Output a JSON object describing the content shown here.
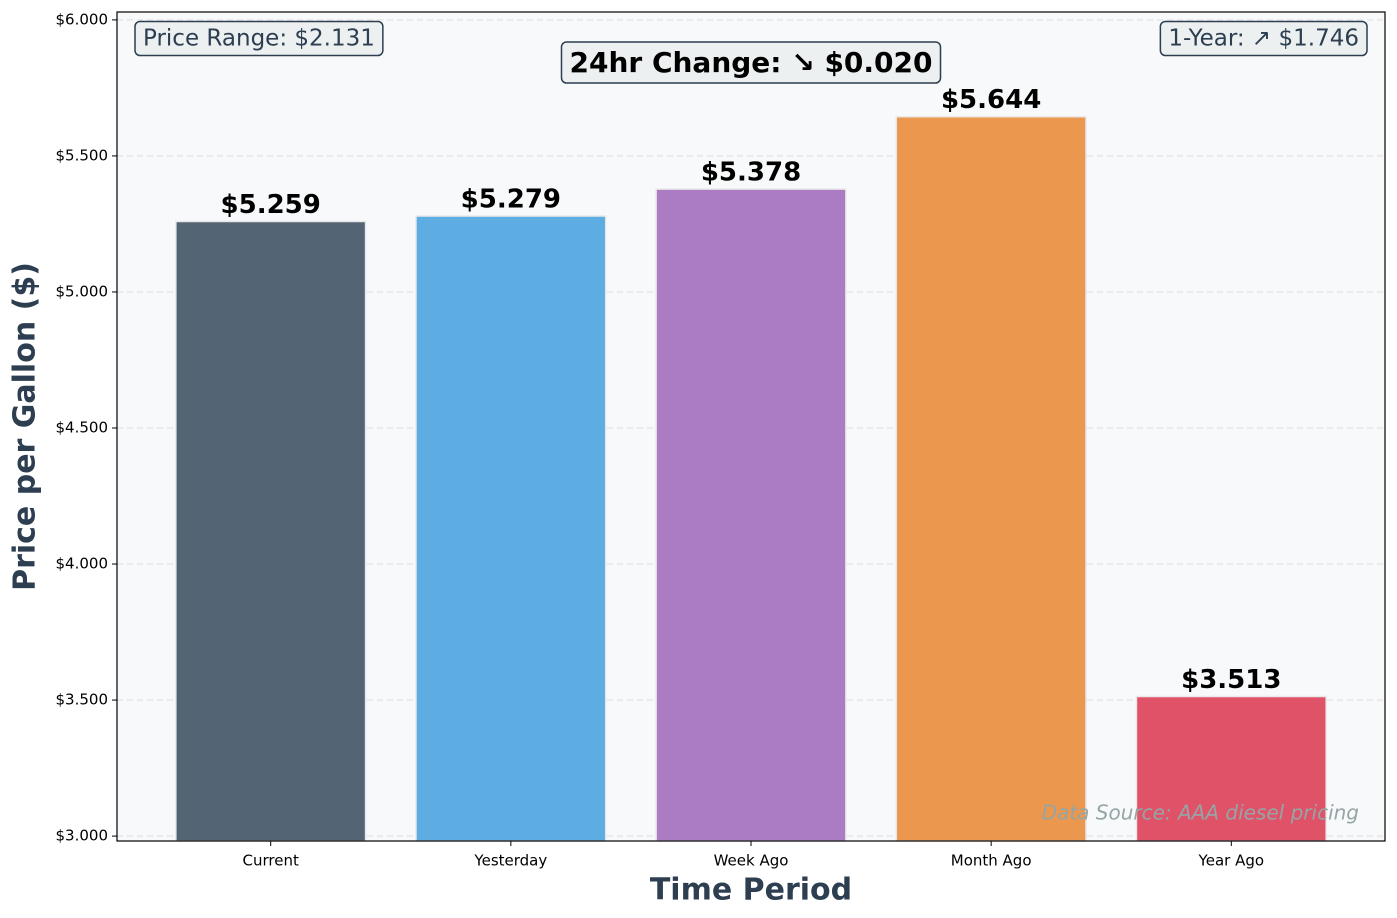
{
  "chart_data": {
    "type": "bar",
    "categories": [
      "Current",
      "Yesterday",
      "Week Ago",
      "Month Ago",
      "Year Ago"
    ],
    "values": [
      5.259,
      5.279,
      5.378,
      5.644,
      3.513
    ],
    "value_labels": [
      "$5.259",
      "$5.279",
      "$5.378",
      "$5.644",
      "$3.513"
    ],
    "colors": [
      "#536474",
      "#5dade2",
      "#ab7bc4",
      "#eb984e",
      "#e05268"
    ],
    "x_label": "Time Period",
    "y_label": "Price per Gallon ($)",
    "ylim": [
      2.982,
      6.029
    ],
    "yticks": [
      {
        "value": 3.0,
        "label": "$3.000"
      },
      {
        "value": 3.5,
        "label": "$3.500"
      },
      {
        "value": 4.0,
        "label": "$4.000"
      },
      {
        "value": 4.5,
        "label": "$4.500"
      },
      {
        "value": 5.0,
        "label": "$5.000"
      },
      {
        "value": 5.5,
        "label": "$5.500"
      },
      {
        "value": 6.0,
        "label": "$6.000"
      }
    ],
    "grid": true,
    "annotations": [
      "Price Range: $2.131",
      "24hr Change: ↘ $0.020",
      "1-Year: ↗ $1.746",
      "Data Source: AAA diesel pricing"
    ]
  }
}
